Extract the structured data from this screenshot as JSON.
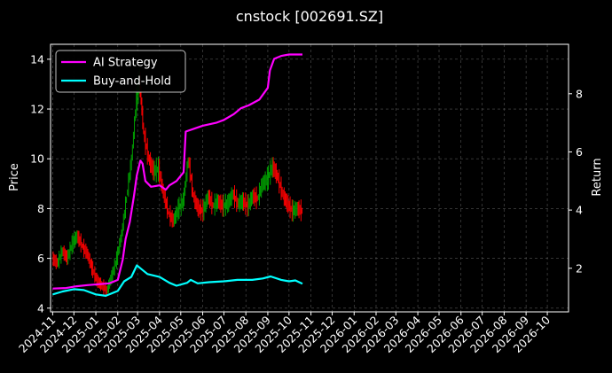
{
  "chart_data": {
    "type": "line",
    "title": "cnstock [002691.SZ]",
    "ylabel_left": "Price",
    "ylabel_right": "Return",
    "ylim_left": [
      3.85,
      14.6
    ],
    "ylim_right": [
      0.5,
      9.7
    ],
    "yticks_left": [
      4,
      6,
      8,
      10,
      12,
      14
    ],
    "yticks_right": [
      2,
      4,
      6,
      8
    ],
    "xlim": [
      "2024-10-29",
      "2026-10-31"
    ],
    "x_ticks": [
      "2024-11",
      "2024-12",
      "2025-01",
      "2025-02",
      "2025-03",
      "2025-04",
      "2025-05",
      "2025-06",
      "2025-07",
      "2025-08",
      "2025-09",
      "2025-10",
      "2025-11",
      "2025-12",
      "2026-01",
      "2026-02",
      "2026-03",
      "2026-04",
      "2026-05",
      "2026-06",
      "2026-07",
      "2026-08",
      "2026-09",
      "2026-10"
    ],
    "grid": true,
    "legend_position": "top-left",
    "colors": {
      "ai": "#ff00ff",
      "bh": "#00ffff",
      "up": "#00a000",
      "down": "#ff0000",
      "grid": "#555555"
    },
    "series": [
      {
        "name": "AI Strategy",
        "axis": "right",
        "points": [
          [
            "2024-11-01",
            1.3
          ],
          [
            "2024-11-20",
            1.32
          ],
          [
            "2024-12-05",
            1.38
          ],
          [
            "2024-12-20",
            1.42
          ],
          [
            "2025-01-05",
            1.45
          ],
          [
            "2025-01-20",
            1.48
          ],
          [
            "2025-02-01",
            1.6
          ],
          [
            "2025-02-08",
            2.3
          ],
          [
            "2025-02-12",
            3.0
          ],
          [
            "2025-02-18",
            3.6
          ],
          [
            "2025-02-24",
            4.5
          ],
          [
            "2025-02-28",
            5.2
          ],
          [
            "2025-03-05",
            5.7
          ],
          [
            "2025-03-08",
            5.6
          ],
          [
            "2025-03-12",
            5.0
          ],
          [
            "2025-03-20",
            4.8
          ],
          [
            "2025-04-01",
            4.85
          ],
          [
            "2025-04-10",
            4.7
          ],
          [
            "2025-04-15",
            4.85
          ],
          [
            "2025-04-25",
            5.0
          ],
          [
            "2025-05-05",
            5.3
          ],
          [
            "2025-05-08",
            6.7
          ],
          [
            "2025-05-20",
            6.8
          ],
          [
            "2025-06-01",
            6.9
          ],
          [
            "2025-06-20",
            7.0
          ],
          [
            "2025-07-01",
            7.1
          ],
          [
            "2025-07-15",
            7.3
          ],
          [
            "2025-07-25",
            7.5
          ],
          [
            "2025-08-05",
            7.6
          ],
          [
            "2025-08-20",
            7.8
          ],
          [
            "2025-09-01",
            8.2
          ],
          [
            "2025-09-04",
            8.8
          ],
          [
            "2025-09-10",
            9.2
          ],
          [
            "2025-09-20",
            9.3
          ],
          [
            "2025-10-01",
            9.35
          ],
          [
            "2025-10-20",
            9.35
          ]
        ]
      },
      {
        "name": "Buy-and-Hold",
        "axis": "right",
        "points": [
          [
            "2024-11-01",
            1.1
          ],
          [
            "2024-11-15",
            1.2
          ],
          [
            "2024-12-01",
            1.28
          ],
          [
            "2024-12-15",
            1.25
          ],
          [
            "2025-01-01",
            1.1
          ],
          [
            "2025-01-15",
            1.05
          ],
          [
            "2025-02-01",
            1.22
          ],
          [
            "2025-02-10",
            1.55
          ],
          [
            "2025-02-20",
            1.7
          ],
          [
            "2025-02-28",
            2.1
          ],
          [
            "2025-03-05",
            2.0
          ],
          [
            "2025-03-15",
            1.8
          ],
          [
            "2025-04-01",
            1.7
          ],
          [
            "2025-04-15",
            1.5
          ],
          [
            "2025-04-25",
            1.4
          ],
          [
            "2025-05-10",
            1.5
          ],
          [
            "2025-05-15",
            1.6
          ],
          [
            "2025-05-25",
            1.48
          ],
          [
            "2025-06-10",
            1.52
          ],
          [
            "2025-07-01",
            1.55
          ],
          [
            "2025-07-20",
            1.6
          ],
          [
            "2025-08-10",
            1.6
          ],
          [
            "2025-08-25",
            1.65
          ],
          [
            "2025-09-05",
            1.72
          ],
          [
            "2025-09-20",
            1.6
          ],
          [
            "2025-10-01",
            1.55
          ],
          [
            "2025-10-10",
            1.58
          ],
          [
            "2025-10-20",
            1.47
          ]
        ]
      }
    ],
    "price_series": {
      "name": "Price",
      "axis": "left",
      "points": [
        [
          "2024-11-01",
          6.0
        ],
        [
          "2024-11-08",
          5.8
        ],
        [
          "2024-11-15",
          6.3
        ],
        [
          "2024-11-22",
          6.0
        ],
        [
          "2024-11-29",
          6.6
        ],
        [
          "2024-12-06",
          6.9
        ],
        [
          "2024-12-13",
          6.5
        ],
        [
          "2024-12-20",
          6.2
        ],
        [
          "2024-12-27",
          5.6
        ],
        [
          "2025-01-03",
          5.1
        ],
        [
          "2025-01-10",
          4.9
        ],
        [
          "2025-01-17",
          4.7
        ],
        [
          "2025-01-24",
          5.3
        ],
        [
          "2025-01-31",
          6.0
        ],
        [
          "2025-02-07",
          7.0
        ],
        [
          "2025-02-14",
          8.5
        ],
        [
          "2025-02-21",
          10.0
        ],
        [
          "2025-02-28",
          12.5
        ],
        [
          "2025-03-04",
          13.2
        ],
        [
          "2025-03-10",
          11.0
        ],
        [
          "2025-03-17",
          10.0
        ],
        [
          "2025-03-24",
          9.5
        ],
        [
          "2025-03-31",
          9.6
        ],
        [
          "2025-04-07",
          8.6
        ],
        [
          "2025-04-14",
          7.8
        ],
        [
          "2025-04-21",
          7.5
        ],
        [
          "2025-04-28",
          8.0
        ],
        [
          "2025-05-05",
          8.3
        ],
        [
          "2025-05-12",
          10.0
        ],
        [
          "2025-05-19",
          8.5
        ],
        [
          "2025-05-26",
          8.0
        ],
        [
          "2025-06-02",
          7.9
        ],
        [
          "2025-06-09",
          8.5
        ],
        [
          "2025-06-16",
          8.1
        ],
        [
          "2025-06-23",
          8.3
        ],
        [
          "2025-06-30",
          8.1
        ],
        [
          "2025-07-07",
          8.2
        ],
        [
          "2025-07-14",
          8.6
        ],
        [
          "2025-07-21",
          8.2
        ],
        [
          "2025-07-28",
          8.3
        ],
        [
          "2025-08-04",
          8.1
        ],
        [
          "2025-08-11",
          8.5
        ],
        [
          "2025-08-18",
          8.4
        ],
        [
          "2025-08-25",
          9.0
        ],
        [
          "2025-09-01",
          9.2
        ],
        [
          "2025-09-08",
          9.7
        ],
        [
          "2025-09-15",
          9.3
        ],
        [
          "2025-09-22",
          8.6
        ],
        [
          "2025-09-29",
          8.2
        ],
        [
          "2025-10-06",
          7.9
        ],
        [
          "2025-10-13",
          8.0
        ],
        [
          "2025-10-20",
          7.9
        ]
      ]
    }
  }
}
